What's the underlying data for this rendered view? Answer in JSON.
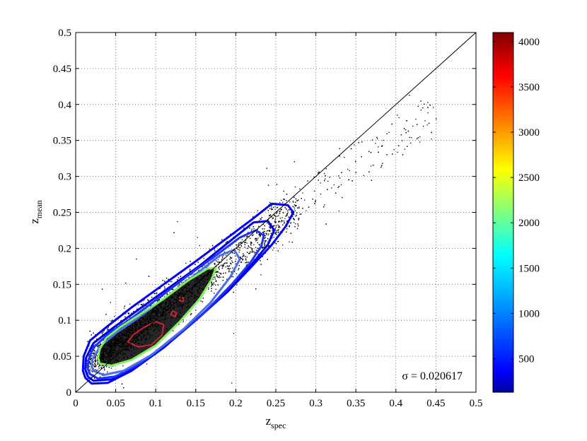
{
  "chart_data": {
    "type": "scatter",
    "x_axis": {
      "label": "z",
      "label_subscript": "spec",
      "range": [
        0,
        0.5
      ],
      "ticks": [
        "0",
        "0.05",
        "0.1",
        "0.15",
        "0.2",
        "0.25",
        "0.3",
        "0.35",
        "0.4",
        "0.45",
        "0.5"
      ],
      "tick_values": [
        0,
        0.05,
        0.1,
        0.15,
        0.2,
        0.25,
        0.3,
        0.35,
        0.4,
        0.45,
        0.5
      ]
    },
    "y_axis": {
      "label": "z",
      "label_subscript": "mean",
      "range": [
        0,
        0.5
      ],
      "ticks": [
        "0",
        "0.05",
        "0.1",
        "0.15",
        "0.2",
        "0.25",
        "0.3",
        "0.35",
        "0.4",
        "0.45",
        "0.5"
      ],
      "tick_values": [
        0,
        0.05,
        0.1,
        0.15,
        0.2,
        0.25,
        0.3,
        0.35,
        0.4,
        0.45,
        0.5
      ]
    },
    "grid": "dotted",
    "reference_line": {
      "from": [
        0,
        0
      ],
      "to": [
        0.5,
        0.5
      ],
      "color": "#000000"
    },
    "annotation": "σ = 0.020617",
    "colorbar": {
      "range": [
        130,
        4100
      ],
      "colormap": "jet",
      "ticks": [
        "500",
        "1000",
        "1500",
        "2000",
        "2500",
        "3000",
        "3500",
        "4000"
      ],
      "tick_values": [
        500,
        1000,
        1500,
        2000,
        2500,
        3000,
        3500,
        4000
      ]
    },
    "scatter_points": {
      "color": "#000000",
      "distribution": "dense band along the 1:1 line, systematically above it at low z and below it at high z, sparse tail to z_spec ≈ 0.45"
    },
    "contours": [
      {
        "level": 150,
        "color": "#0000ff",
        "points": [
          [
            0.012,
            0.02
          ],
          [
            0.02,
            0.012
          ],
          [
            0.04,
            0.013
          ],
          [
            0.07,
            0.03
          ],
          [
            0.11,
            0.062
          ],
          [
            0.15,
            0.1
          ],
          [
            0.19,
            0.14
          ],
          [
            0.22,
            0.175
          ],
          [
            0.245,
            0.205
          ],
          [
            0.262,
            0.23
          ],
          [
            0.272,
            0.25
          ],
          [
            0.265,
            0.26
          ],
          [
            0.245,
            0.262
          ],
          [
            0.22,
            0.24
          ],
          [
            0.19,
            0.215
          ],
          [
            0.15,
            0.182
          ],
          [
            0.11,
            0.15
          ],
          [
            0.07,
            0.118
          ],
          [
            0.04,
            0.092
          ],
          [
            0.018,
            0.072
          ],
          [
            0.01,
            0.05
          ],
          [
            0.009,
            0.03
          ]
        ]
      },
      {
        "level": 250,
        "color": "#0000ee",
        "points": [
          [
            0.015,
            0.022
          ],
          [
            0.022,
            0.016
          ],
          [
            0.045,
            0.018
          ],
          [
            0.075,
            0.036
          ],
          [
            0.115,
            0.068
          ],
          [
            0.155,
            0.105
          ],
          [
            0.192,
            0.145
          ],
          [
            0.22,
            0.178
          ],
          [
            0.24,
            0.205
          ],
          [
            0.248,
            0.225
          ],
          [
            0.24,
            0.238
          ],
          [
            0.222,
            0.236
          ],
          [
            0.195,
            0.212
          ],
          [
            0.155,
            0.176
          ],
          [
            0.115,
            0.144
          ],
          [
            0.075,
            0.112
          ],
          [
            0.045,
            0.088
          ],
          [
            0.022,
            0.068
          ],
          [
            0.013,
            0.048
          ],
          [
            0.012,
            0.032
          ]
        ]
      },
      {
        "level": 400,
        "color": "#1f33f5",
        "points": [
          [
            0.018,
            0.025
          ],
          [
            0.028,
            0.019
          ],
          [
            0.05,
            0.022
          ],
          [
            0.08,
            0.04
          ],
          [
            0.12,
            0.073
          ],
          [
            0.16,
            0.11
          ],
          [
            0.195,
            0.15
          ],
          [
            0.218,
            0.18
          ],
          [
            0.232,
            0.203
          ],
          [
            0.235,
            0.218
          ],
          [
            0.225,
            0.225
          ],
          [
            0.205,
            0.215
          ],
          [
            0.175,
            0.19
          ],
          [
            0.14,
            0.162
          ],
          [
            0.105,
            0.132
          ],
          [
            0.07,
            0.103
          ],
          [
            0.042,
            0.082
          ],
          [
            0.022,
            0.062
          ],
          [
            0.016,
            0.045
          ],
          [
            0.015,
            0.033
          ]
        ]
      },
      {
        "level": 800,
        "color": "#4d6ee8",
        "points": [
          [
            0.022,
            0.03
          ],
          [
            0.035,
            0.024
          ],
          [
            0.06,
            0.03
          ],
          [
            0.095,
            0.052
          ],
          [
            0.135,
            0.088
          ],
          [
            0.168,
            0.124
          ],
          [
            0.193,
            0.16
          ],
          [
            0.205,
            0.185
          ],
          [
            0.198,
            0.198
          ],
          [
            0.18,
            0.19
          ],
          [
            0.15,
            0.164
          ],
          [
            0.115,
            0.134
          ],
          [
            0.08,
            0.105
          ],
          [
            0.05,
            0.082
          ],
          [
            0.03,
            0.063
          ],
          [
            0.021,
            0.046
          ],
          [
            0.02,
            0.036
          ]
        ]
      },
      {
        "level": 2100,
        "color": "#7df05a",
        "points": [
          [
            0.03,
            0.04
          ],
          [
            0.045,
            0.037
          ],
          [
            0.07,
            0.045
          ],
          [
            0.1,
            0.065
          ],
          [
            0.13,
            0.098
          ],
          [
            0.155,
            0.13
          ],
          [
            0.17,
            0.157
          ],
          [
            0.175,
            0.172
          ],
          [
            0.165,
            0.172
          ],
          [
            0.14,
            0.155
          ],
          [
            0.11,
            0.13
          ],
          [
            0.08,
            0.108
          ],
          [
            0.055,
            0.09
          ],
          [
            0.038,
            0.075
          ],
          [
            0.03,
            0.06
          ],
          [
            0.028,
            0.048
          ]
        ]
      },
      {
        "level": 3600,
        "color": "#cc2233",
        "points": [
          [
            0.065,
            0.07
          ],
          [
            0.078,
            0.063
          ],
          [
            0.095,
            0.066
          ],
          [
            0.108,
            0.08
          ],
          [
            0.11,
            0.094
          ],
          [
            0.1,
            0.098
          ],
          [
            0.085,
            0.09
          ],
          [
            0.072,
            0.08
          ]
        ]
      },
      {
        "level": 3600,
        "color": "#cc2233",
        "points": [
          [
            0.119,
            0.108
          ],
          [
            0.124,
            0.105
          ],
          [
            0.126,
            0.11
          ],
          [
            0.121,
            0.113
          ]
        ]
      },
      {
        "level": 3600,
        "color": "#cc2233",
        "points": [
          [
            0.13,
            0.127
          ],
          [
            0.134,
            0.126
          ],
          [
            0.135,
            0.131
          ],
          [
            0.13,
            0.132
          ]
        ]
      }
    ]
  }
}
